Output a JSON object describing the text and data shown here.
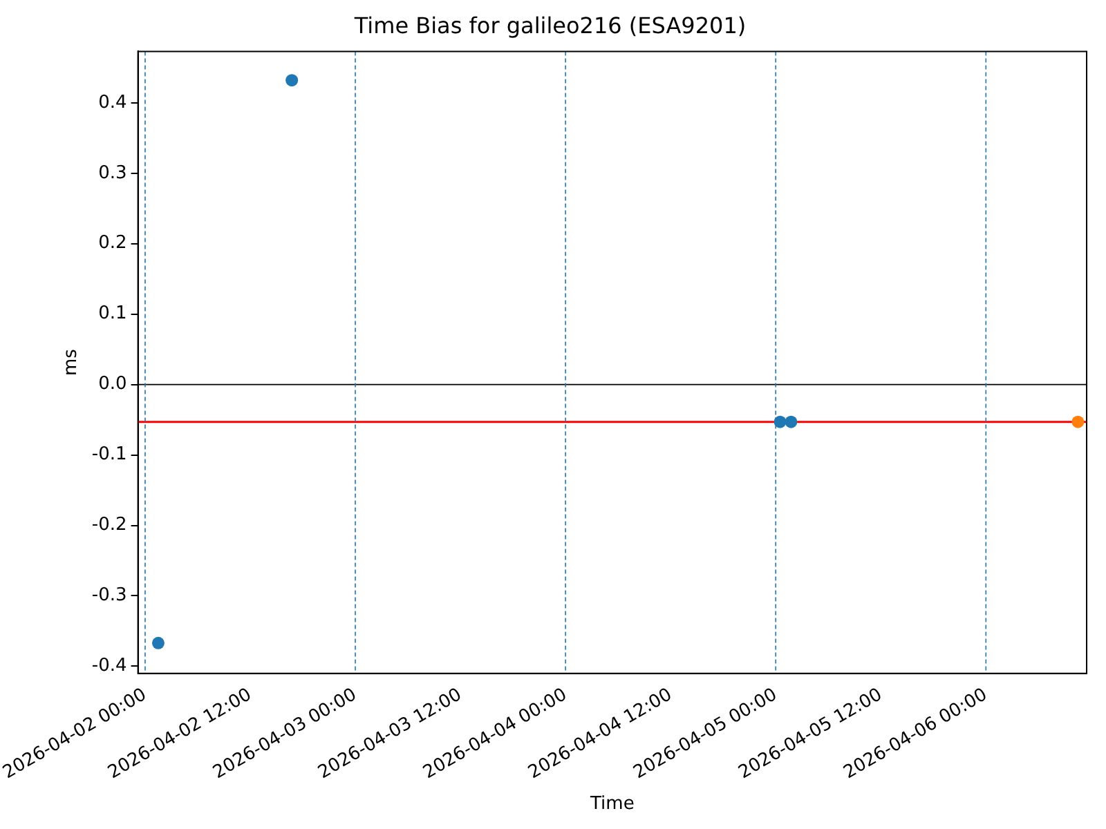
{
  "chart_data": {
    "type": "scatter",
    "title": "Time Bias for galileo216 (ESA9201)",
    "xlabel": "Time",
    "ylabel": "ms",
    "series": [
      {
        "color": "#1f77b4",
        "x": [
          "2026-04-02T01:30",
          "2026-04-02T16:45",
          "2026-04-05T00:30",
          "2026-04-05T01:45"
        ],
        "values": [
          -0.367,
          0.432,
          -0.053,
          -0.053
        ]
      },
      {
        "color": "#ff7f0e",
        "x": [
          "2026-04-06T10:30"
        ],
        "values": [
          -0.053
        ]
      }
    ],
    "xlim": [
      "2026-04-01T23:11",
      "2026-04-06T11:30"
    ],
    "xticks": [
      {
        "value": "2026-04-02T00:00",
        "label": "2026-04-02 00:00"
      },
      {
        "value": "2026-04-02T12:00",
        "label": "2026-04-02 12:00"
      },
      {
        "value": "2026-04-03T00:00",
        "label": "2026-04-03 00:00"
      },
      {
        "value": "2026-04-03T12:00",
        "label": "2026-04-03 12:00"
      },
      {
        "value": "2026-04-04T00:00",
        "label": "2026-04-04 00:00"
      },
      {
        "value": "2026-04-04T12:00",
        "label": "2026-04-04 12:00"
      },
      {
        "value": "2026-04-05T00:00",
        "label": "2026-04-05 00:00"
      },
      {
        "value": "2026-04-05T12:00",
        "label": "2026-04-05 12:00"
      },
      {
        "value": "2026-04-06T00:00",
        "label": "2026-04-06 00:00"
      }
    ],
    "ylim": [
      -0.41,
      0.473
    ],
    "yticks": [
      -0.4,
      -0.3,
      -0.2,
      -0.1,
      {
        "value": 0,
        "label": "0.0"
      },
      0.1,
      0.2,
      0.3,
      0.4
    ],
    "ref_lines": [
      {
        "axis": "y",
        "value": 0,
        "color": "#000000"
      },
      {
        "axis": "y",
        "value": -0.053,
        "color": "#ff0000"
      },
      {
        "axis": "x",
        "value": "2026-04-02T00:00",
        "color": "#1f77b4",
        "line_style": "dashed"
      },
      {
        "axis": "x",
        "value": "2026-04-03T00:00",
        "color": "#1f77b4",
        "line_style": "dashed"
      },
      {
        "axis": "x",
        "value": "2026-04-04T00:00",
        "color": "#1f77b4",
        "line_style": "dashed"
      },
      {
        "axis": "x",
        "value": "2026-04-05T00:00",
        "color": "#1f77b4",
        "line_style": "dashed"
      },
      {
        "axis": "x",
        "value": "2026-04-06T00:00",
        "color": "#1f77b4",
        "line_style": "dashed"
      }
    ],
    "grid": false,
    "legend": false,
    "marker": "circle"
  }
}
